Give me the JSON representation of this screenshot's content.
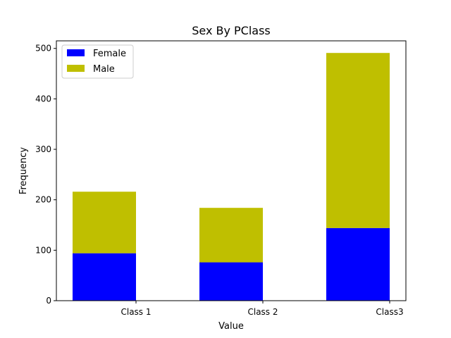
{
  "chart_data": {
    "type": "bar",
    "stacked": true,
    "title": "Sex By PClass",
    "xlabel": "Value",
    "ylabel": "Frequency",
    "categories": [
      "Class 1",
      "Class 2",
      "Class3"
    ],
    "series": [
      {
        "name": "Female",
        "color": "#0000ff",
        "values": [
          94,
          76,
          144
        ]
      },
      {
        "name": "Male",
        "color": "#bfbf00",
        "values": [
          122,
          108,
          347
        ]
      }
    ],
    "ylim": [
      0,
      515
    ],
    "yticks": [
      0,
      100,
      200,
      300,
      400,
      500
    ],
    "grid": false,
    "legend": "top-left"
  }
}
